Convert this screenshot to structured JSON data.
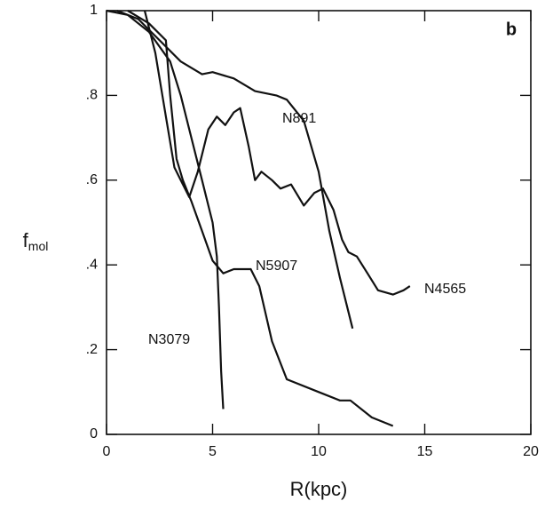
{
  "chart_data": {
    "type": "line",
    "panel_label": "b",
    "xlabel": "R(kpc)",
    "ylabel": "f",
    "ylabel_subscript": "mol",
    "xlim": [
      0,
      20
    ],
    "xticks": [
      0,
      5,
      10,
      15,
      20
    ],
    "ylim": [
      0,
      1
    ],
    "yticks": [
      0,
      {
        "value": 0.2,
        "label": ".2"
      },
      {
        "value": 0.4,
        "label": ".4"
      },
      {
        "value": 0.6,
        "label": ".6"
      },
      {
        "value": 0.8,
        "label": ".8"
      },
      1
    ],
    "series": [
      {
        "name": "N891",
        "color": "#111111",
        "x": [
          0.5,
          1.5,
          2.5,
          3.5,
          4.5,
          5,
          6,
          7,
          8,
          8.5,
          9.3,
          10,
          10.5,
          11,
          11.6
        ],
        "values": [
          1,
          0.98,
          0.93,
          0.88,
          0.85,
          0.855,
          0.84,
          0.81,
          0.8,
          0.79,
          0.74,
          0.62,
          0.48,
          0.37,
          0.25
        ]
      },
      {
        "name": "N4565",
        "color": "#111111",
        "x": [
          1.8,
          2.3,
          2.8,
          3.2,
          3.5,
          3.9,
          4.3,
          4.8,
          5.2,
          5.6,
          6,
          6.3,
          6.7,
          7,
          7.3,
          7.8,
          8.2,
          8.7,
          9.3,
          9.8,
          10.2,
          10.7,
          11.1,
          11.4,
          11.8,
          12.3,
          12.8,
          13.5,
          14,
          14.3
        ],
        "values": [
          1,
          0.9,
          0.75,
          0.63,
          0.6,
          0.56,
          0.62,
          0.72,
          0.75,
          0.73,
          0.76,
          0.77,
          0.68,
          0.6,
          0.62,
          0.6,
          0.58,
          0.59,
          0.54,
          0.57,
          0.58,
          0.53,
          0.46,
          0.43,
          0.42,
          0.38,
          0.34,
          0.33,
          0.34,
          0.35
        ]
      },
      {
        "name": "N5907",
        "color": "#111111",
        "x": [
          1,
          2,
          2.8,
          3,
          3.3,
          3.6,
          4,
          4.5,
          5,
          5.5,
          6,
          6.8,
          7.2,
          7.8,
          8.5,
          10,
          11,
          11.5,
          12.5,
          13.5
        ],
        "values": [
          1,
          0.97,
          0.93,
          0.8,
          0.65,
          0.6,
          0.55,
          0.48,
          0.41,
          0.38,
          0.39,
          0.39,
          0.35,
          0.22,
          0.13,
          0.1,
          0.08,
          0.08,
          0.04,
          0.02
        ]
      },
      {
        "name": "N3079",
        "color": "#111111",
        "x": [
          0,
          1,
          2,
          3,
          3.5,
          4,
          4.5,
          5,
          5.2,
          5.3,
          5.4,
          5.5
        ],
        "values": [
          1,
          0.99,
          0.95,
          0.88,
          0.8,
          0.7,
          0.6,
          0.5,
          0.42,
          0.3,
          0.15,
          0.06
        ]
      }
    ]
  }
}
